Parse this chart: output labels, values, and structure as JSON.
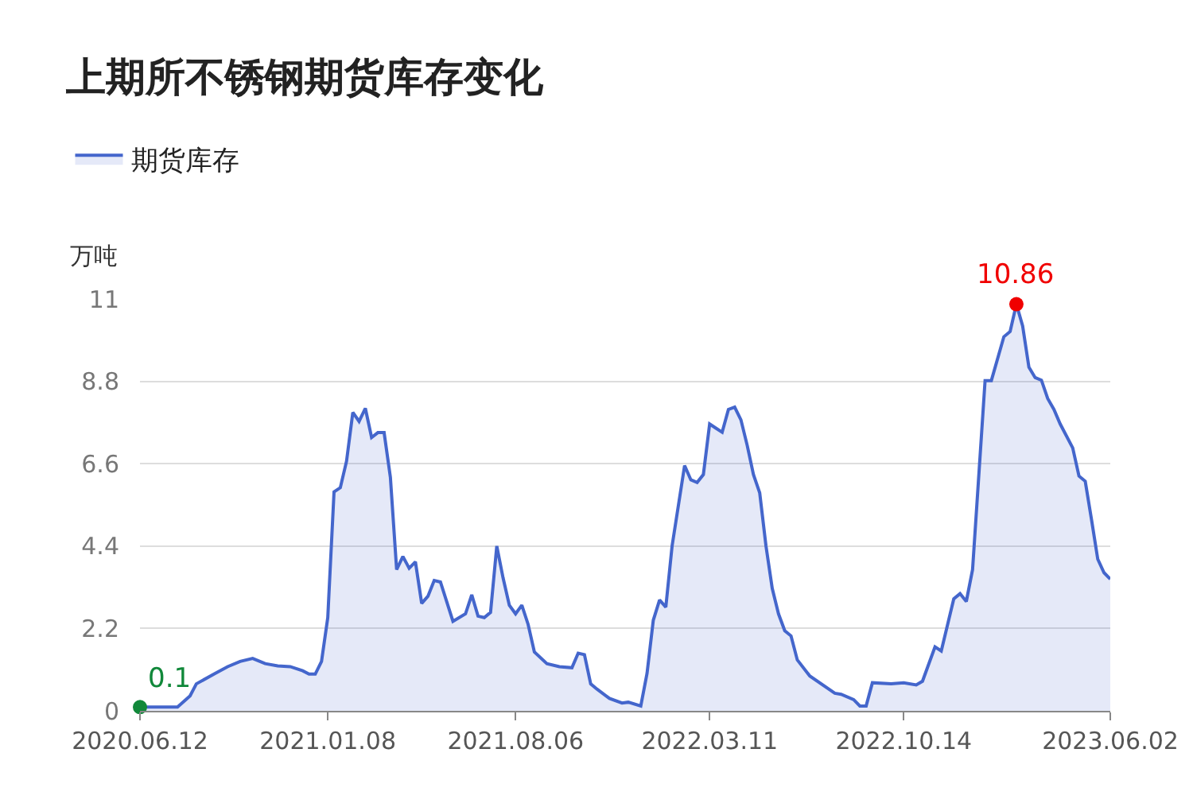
{
  "chart_data": {
    "type": "area",
    "title": "上期所不锈钢期货库存变化",
    "ylabel": "万吨",
    "legend": "top left",
    "grid": "y",
    "marker": "none",
    "line_style": "solid",
    "x": [
      "2020-06-12",
      "2020-07-24",
      "2020-08-07",
      "2020-08-14",
      "2020-09-04",
      "2020-09-18",
      "2020-10-02",
      "2020-10-16",
      "2020-10-30",
      "2020-11-13",
      "2020-11-27",
      "2020-12-11",
      "2020-12-18",
      "2020-12-25",
      "2021-01-01",
      "2021-01-08",
      "2021-01-15",
      "2021-01-22",
      "2021-01-29",
      "2021-02-05",
      "2021-02-12",
      "2021-02-19",
      "2021-02-26",
      "2021-03-05",
      "2021-03-12",
      "2021-03-19",
      "2021-03-26",
      "2021-04-02",
      "2021-04-09",
      "2021-04-16",
      "2021-04-23",
      "2021-04-30",
      "2021-05-07",
      "2021-05-14",
      "2021-05-28",
      "2021-06-11",
      "2021-06-18",
      "2021-06-25",
      "2021-07-02",
      "2021-07-09",
      "2021-07-16",
      "2021-07-23",
      "2021-07-30",
      "2021-08-06",
      "2021-08-13",
      "2021-08-20",
      "2021-08-27",
      "2021-09-10",
      "2021-09-24",
      "2021-10-08",
      "2021-10-15",
      "2021-10-22",
      "2021-10-29",
      "2021-11-05",
      "2021-11-19",
      "2021-12-03",
      "2021-12-10",
      "2021-12-24",
      "2021-12-31",
      "2022-01-07",
      "2022-01-14",
      "2022-01-21",
      "2022-01-28",
      "2022-02-11",
      "2022-02-18",
      "2022-02-25",
      "2022-03-04",
      "2022-03-11",
      "2022-03-18",
      "2022-03-25",
      "2022-04-01",
      "2022-04-08",
      "2022-04-15",
      "2022-04-22",
      "2022-04-29",
      "2022-05-06",
      "2022-05-13",
      "2022-05-20",
      "2022-05-27",
      "2022-06-03",
      "2022-06-10",
      "2022-06-17",
      "2022-07-01",
      "2022-07-29",
      "2022-08-05",
      "2022-08-19",
      "2022-08-26",
      "2022-09-02",
      "2022-09-09",
      "2022-09-30",
      "2022-10-14",
      "2022-10-28",
      "2022-11-04",
      "2022-11-18",
      "2022-11-25",
      "2022-12-09",
      "2022-12-16",
      "2022-12-23",
      "2022-12-30",
      "2023-01-13",
      "2023-01-20",
      "2023-02-03",
      "2023-02-10",
      "2023-02-17",
      "2023-02-24",
      "2023-03-03",
      "2023-03-10",
      "2023-03-17",
      "2023-03-24",
      "2023-03-31",
      "2023-04-07",
      "2023-04-21",
      "2023-04-28",
      "2023-05-05",
      "2023-05-12",
      "2023-05-19",
      "2023-05-26",
      "2023-06-02"
    ],
    "xlim": [
      "2020-06-12",
      "2023-06-02"
    ],
    "xticks": [
      {
        "value": "2020-06-12",
        "label": "2020.06.12"
      },
      {
        "value": "2021-01-08",
        "label": "2021.01.08"
      },
      {
        "value": "2021-08-06",
        "label": "2021.08.06"
      },
      {
        "value": "2022-03-11",
        "label": "2022.03.11"
      },
      {
        "value": "2022-10-14",
        "label": "2022.10.14"
      },
      {
        "value": "2023-06-02",
        "label": "2023.06.02"
      }
    ],
    "ylim": [
      0,
      11
    ],
    "yticks": [
      0,
      2.2,
      4.4,
      6.6,
      8.8,
      11
    ],
    "series": [
      {
        "name": "期货库存",
        "color": "#4466cc",
        "values": [
          0.1,
          0.1,
          0.4,
          0.72,
          1.0,
          1.18,
          1.32,
          1.4,
          1.26,
          1.2,
          1.18,
          1.07,
          0.98,
          0.98,
          1.32,
          2.49,
          5.85,
          5.96,
          6.67,
          7.97,
          7.73,
          8.08,
          7.3,
          7.43,
          7.43,
          6.24,
          3.77,
          4.12,
          3.81,
          3.98,
          2.87,
          3.06,
          3.48,
          3.44,
          2.39,
          2.59,
          3.1,
          2.53,
          2.49,
          2.63,
          4.4,
          3.55,
          2.82,
          2.59,
          2.82,
          2.31,
          1.57,
          1.26,
          1.18,
          1.15,
          1.54,
          1.5,
          0.72,
          0.58,
          0.33,
          0.21,
          0.23,
          0.13,
          1.0,
          2.42,
          2.96,
          2.77,
          4.4,
          6.55,
          6.17,
          6.1,
          6.31,
          7.66,
          7.55,
          7.44,
          8.05,
          8.11,
          7.77,
          7.09,
          6.31,
          5.82,
          4.4,
          3.27,
          2.59,
          2.14,
          2.0,
          1.36,
          0.93,
          0.47,
          0.44,
          0.3,
          0.13,
          0.13,
          0.75,
          0.72,
          0.75,
          0.69,
          0.79,
          1.71,
          1.6,
          2.99,
          3.13,
          2.92,
          3.77,
          8.82,
          8.82,
          9.99,
          10.13,
          10.86,
          10.28,
          9.18,
          8.9,
          8.83,
          8.34,
          8.05,
          7.66,
          7.02,
          6.27,
          6.13,
          5.11,
          4.05,
          3.69,
          3.52
        ]
      }
    ],
    "annotations": [
      {
        "text": "10.86",
        "x": "2023-02-17",
        "y": 10.86
      },
      {
        "text": "0.1",
        "x": "2020-06-12",
        "y": 0.1
      }
    ]
  }
}
